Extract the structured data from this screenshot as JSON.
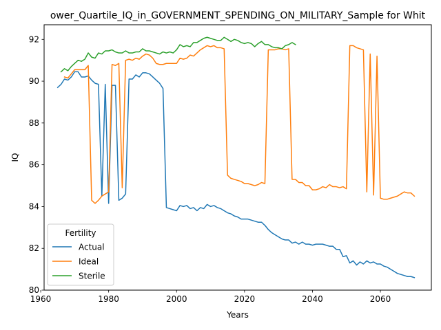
{
  "chart_data": {
    "type": "line",
    "title": "ower_Quartile_IQ_in_GOVERNMENT_SPENDING_ON_MILITARY_Sample for Whit",
    "xlabel": "Years",
    "ylabel": "IQ",
    "xlim": [
      1961,
      2075
    ],
    "ylim": [
      80,
      92.7
    ],
    "xticks": [
      1960,
      1980,
      2000,
      2020,
      2040,
      2060
    ],
    "yticks": [
      80,
      82,
      84,
      86,
      88,
      90,
      92
    ],
    "grid": false,
    "legend": {
      "title": "Fertility",
      "placement": "lower-left"
    },
    "series": [
      {
        "name": "Actual",
        "color": "#1f77b4",
        "points": [
          [
            1965,
            89.7
          ],
          [
            1966,
            89.85
          ],
          [
            1967,
            90.1
          ],
          [
            1968,
            90.05
          ],
          [
            1969,
            90.2
          ],
          [
            1970,
            90.45
          ],
          [
            1971,
            90.45
          ],
          [
            1972,
            90.2
          ],
          [
            1973,
            90.2
          ],
          [
            1974,
            90.25
          ],
          [
            1975,
            90.05
          ],
          [
            1976,
            89.9
          ],
          [
            1977,
            89.85
          ],
          [
            1978,
            84.5
          ],
          [
            1979,
            89.85
          ],
          [
            1980,
            84.15
          ],
          [
            1981,
            89.8
          ],
          [
            1982,
            89.8
          ],
          [
            1983,
            84.3
          ],
          [
            1984,
            84.4
          ],
          [
            1985,
            84.6
          ],
          [
            1986,
            90.1
          ],
          [
            1987,
            90.1
          ],
          [
            1988,
            90.3
          ],
          [
            1989,
            90.2
          ],
          [
            1990,
            90.4
          ],
          [
            1991,
            90.4
          ],
          [
            1992,
            90.35
          ],
          [
            1993,
            90.2
          ],
          [
            1994,
            90.05
          ],
          [
            1995,
            89.9
          ],
          [
            1996,
            89.65
          ],
          [
            1997,
            83.95
          ],
          [
            1998,
            83.9
          ],
          [
            1999,
            83.85
          ],
          [
            2000,
            83.8
          ],
          [
            2001,
            84.05
          ],
          [
            2002,
            84.0
          ],
          [
            2003,
            84.05
          ],
          [
            2004,
            83.9
          ],
          [
            2005,
            83.95
          ],
          [
            2006,
            83.8
          ],
          [
            2007,
            83.95
          ],
          [
            2008,
            83.9
          ],
          [
            2009,
            84.1
          ],
          [
            2010,
            84.0
          ],
          [
            2011,
            84.05
          ],
          [
            2012,
            83.95
          ],
          [
            2013,
            83.9
          ],
          [
            2014,
            83.8
          ],
          [
            2015,
            83.7
          ],
          [
            2016,
            83.65
          ],
          [
            2017,
            83.55
          ],
          [
            2018,
            83.5
          ],
          [
            2019,
            83.4
          ],
          [
            2020,
            83.4
          ],
          [
            2021,
            83.4
          ],
          [
            2022,
            83.35
          ],
          [
            2023,
            83.3
          ],
          [
            2024,
            83.25
          ],
          [
            2025,
            83.25
          ],
          [
            2026,
            83.1
          ],
          [
            2027,
            82.9
          ],
          [
            2028,
            82.75
          ],
          [
            2029,
            82.65
          ],
          [
            2030,
            82.55
          ],
          [
            2031,
            82.45
          ],
          [
            2032,
            82.4
          ],
          [
            2033,
            82.4
          ],
          [
            2034,
            82.25
          ],
          [
            2035,
            82.3
          ],
          [
            2036,
            82.2
          ],
          [
            2037,
            82.3
          ],
          [
            2038,
            82.2
          ],
          [
            2039,
            82.2
          ],
          [
            2040,
            82.15
          ],
          [
            2041,
            82.2
          ],
          [
            2042,
            82.2
          ],
          [
            2043,
            82.2
          ],
          [
            2044,
            82.15
          ],
          [
            2045,
            82.1
          ],
          [
            2046,
            82.1
          ],
          [
            2047,
            81.95
          ],
          [
            2048,
            81.95
          ],
          [
            2049,
            81.6
          ],
          [
            2050,
            81.65
          ],
          [
            2051,
            81.3
          ],
          [
            2052,
            81.4
          ],
          [
            2053,
            81.2
          ],
          [
            2054,
            81.35
          ],
          [
            2055,
            81.25
          ],
          [
            2056,
            81.4
          ],
          [
            2057,
            81.3
          ],
          [
            2058,
            81.35
          ],
          [
            2059,
            81.25
          ],
          [
            2060,
            81.25
          ],
          [
            2061,
            81.15
          ],
          [
            2062,
            81.1
          ],
          [
            2063,
            81.0
          ],
          [
            2064,
            80.9
          ],
          [
            2065,
            80.8
          ],
          [
            2066,
            80.75
          ],
          [
            2067,
            80.7
          ],
          [
            2068,
            80.65
          ],
          [
            2069,
            80.65
          ],
          [
            2070,
            80.6
          ]
        ]
      },
      {
        "name": "Ideal",
        "color": "#ff7f0e",
        "points": [
          [
            1967,
            90.2
          ],
          [
            1968,
            90.15
          ],
          [
            1969,
            90.35
          ],
          [
            1970,
            90.55
          ],
          [
            1971,
            90.55
          ],
          [
            1972,
            90.55
          ],
          [
            1973,
            90.55
          ],
          [
            1974,
            90.75
          ],
          [
            1975,
            84.3
          ],
          [
            1976,
            84.15
          ],
          [
            1977,
            84.3
          ],
          [
            1978,
            84.5
          ],
          [
            1979,
            84.6
          ],
          [
            1980,
            84.7
          ],
          [
            1981,
            90.8
          ],
          [
            1982,
            90.75
          ],
          [
            1983,
            90.85
          ],
          [
            1984,
            84.9
          ],
          [
            1985,
            91.0
          ],
          [
            1986,
            91.05
          ],
          [
            1987,
            91.0
          ],
          [
            1988,
            91.1
          ],
          [
            1989,
            91.05
          ],
          [
            1990,
            91.2
          ],
          [
            1991,
            91.3
          ],
          [
            1992,
            91.25
          ],
          [
            1993,
            91.1
          ],
          [
            1994,
            90.85
          ],
          [
            1995,
            90.8
          ],
          [
            1996,
            90.8
          ],
          [
            1997,
            90.85
          ],
          [
            1998,
            90.85
          ],
          [
            1999,
            90.85
          ],
          [
            2000,
            90.85
          ],
          [
            2001,
            91.1
          ],
          [
            2002,
            91.05
          ],
          [
            2003,
            91.1
          ],
          [
            2004,
            91.25
          ],
          [
            2005,
            91.2
          ],
          [
            2006,
            91.35
          ],
          [
            2007,
            91.5
          ],
          [
            2008,
            91.6
          ],
          [
            2009,
            91.7
          ],
          [
            2010,
            91.65
          ],
          [
            2011,
            91.7
          ],
          [
            2012,
            91.6
          ],
          [
            2013,
            91.6
          ],
          [
            2014,
            91.55
          ],
          [
            2015,
            85.5
          ],
          [
            2016,
            85.35
          ],
          [
            2017,
            85.3
          ],
          [
            2018,
            85.25
          ],
          [
            2019,
            85.2
          ],
          [
            2020,
            85.1
          ],
          [
            2021,
            85.1
          ],
          [
            2022,
            85.05
          ],
          [
            2023,
            85.0
          ],
          [
            2024,
            85.05
          ],
          [
            2025,
            85.15
          ],
          [
            2026,
            85.1
          ],
          [
            2027,
            91.5
          ],
          [
            2028,
            91.5
          ],
          [
            2029,
            91.5
          ],
          [
            2030,
            91.55
          ],
          [
            2031,
            91.55
          ],
          [
            2032,
            91.5
          ],
          [
            2033,
            91.55
          ],
          [
            2034,
            85.3
          ],
          [
            2035,
            85.3
          ],
          [
            2036,
            85.15
          ],
          [
            2037,
            85.15
          ],
          [
            2038,
            85.0
          ],
          [
            2039,
            85.0
          ],
          [
            2040,
            84.8
          ],
          [
            2041,
            84.8
          ],
          [
            2042,
            84.85
          ],
          [
            2043,
            84.95
          ],
          [
            2044,
            84.9
          ],
          [
            2045,
            85.05
          ],
          [
            2046,
            84.95
          ],
          [
            2047,
            84.95
          ],
          [
            2048,
            84.9
          ],
          [
            2049,
            84.95
          ],
          [
            2050,
            84.85
          ],
          [
            2051,
            91.7
          ],
          [
            2052,
            91.7
          ],
          [
            2053,
            91.6
          ],
          [
            2054,
            91.55
          ],
          [
            2055,
            91.5
          ],
          [
            2056,
            84.7
          ],
          [
            2057,
            91.3
          ],
          [
            2058,
            84.55
          ],
          [
            2059,
            91.2
          ],
          [
            2060,
            84.4
          ],
          [
            2061,
            84.35
          ],
          [
            2062,
            84.35
          ],
          [
            2063,
            84.4
          ],
          [
            2064,
            84.45
          ],
          [
            2065,
            84.5
          ],
          [
            2066,
            84.6
          ],
          [
            2067,
            84.7
          ],
          [
            2068,
            84.65
          ],
          [
            2069,
            84.65
          ],
          [
            2070,
            84.5
          ]
        ]
      },
      {
        "name": "Sterile",
        "color": "#2ca02c",
        "points": [
          [
            1966,
            90.45
          ],
          [
            1967,
            90.6
          ],
          [
            1968,
            90.5
          ],
          [
            1969,
            90.7
          ],
          [
            1970,
            90.85
          ],
          [
            1971,
            91.0
          ],
          [
            1972,
            90.95
          ],
          [
            1973,
            91.05
          ],
          [
            1974,
            91.35
          ],
          [
            1975,
            91.15
          ],
          [
            1976,
            91.1
          ],
          [
            1977,
            91.35
          ],
          [
            1978,
            91.3
          ],
          [
            1979,
            91.45
          ],
          [
            1980,
            91.45
          ],
          [
            1981,
            91.5
          ],
          [
            1982,
            91.4
          ],
          [
            1983,
            91.35
          ],
          [
            1984,
            91.35
          ],
          [
            1985,
            91.45
          ],
          [
            1986,
            91.35
          ],
          [
            1987,
            91.35
          ],
          [
            1988,
            91.4
          ],
          [
            1989,
            91.4
          ],
          [
            1990,
            91.55
          ],
          [
            1991,
            91.45
          ],
          [
            1992,
            91.45
          ],
          [
            1993,
            91.4
          ],
          [
            1994,
            91.35
          ],
          [
            1995,
            91.3
          ],
          [
            1996,
            91.4
          ],
          [
            1997,
            91.35
          ],
          [
            1998,
            91.4
          ],
          [
            1999,
            91.35
          ],
          [
            2000,
            91.5
          ],
          [
            2001,
            91.75
          ],
          [
            2002,
            91.65
          ],
          [
            2003,
            91.7
          ],
          [
            2004,
            91.65
          ],
          [
            2005,
            91.85
          ],
          [
            2006,
            91.85
          ],
          [
            2007,
            91.95
          ],
          [
            2008,
            92.05
          ],
          [
            2009,
            92.1
          ],
          [
            2010,
            92.05
          ],
          [
            2011,
            92.0
          ],
          [
            2012,
            91.95
          ],
          [
            2013,
            91.95
          ],
          [
            2014,
            92.1
          ],
          [
            2015,
            92.0
          ],
          [
            2016,
            91.9
          ],
          [
            2017,
            92.0
          ],
          [
            2018,
            91.95
          ],
          [
            2019,
            91.85
          ],
          [
            2020,
            91.8
          ],
          [
            2021,
            91.85
          ],
          [
            2022,
            91.8
          ],
          [
            2023,
            91.65
          ],
          [
            2024,
            91.8
          ],
          [
            2025,
            91.9
          ],
          [
            2026,
            91.75
          ],
          [
            2027,
            91.75
          ],
          [
            2028,
            91.65
          ],
          [
            2029,
            91.6
          ],
          [
            2030,
            91.6
          ],
          [
            2031,
            91.55
          ],
          [
            2032,
            91.7
          ],
          [
            2033,
            91.75
          ],
          [
            2034,
            91.85
          ],
          [
            2035,
            91.75
          ]
        ]
      }
    ]
  }
}
